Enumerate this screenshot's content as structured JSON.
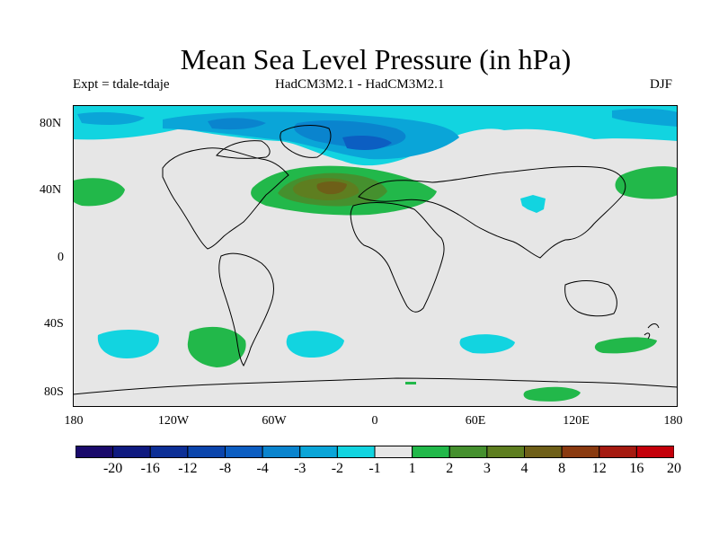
{
  "title": "Mean Sea Level Pressure (in hPa)",
  "experiment": "Expt = tdale-tdaje",
  "models": "HadCM3M2.1 - HadCM3M2.1",
  "season": "DJF",
  "lat_labels": [
    "80N",
    "40N",
    "0",
    "40S",
    "80S"
  ],
  "lon_labels": [
    "180",
    "120W",
    "60W",
    "0",
    "60E",
    "120E",
    "180"
  ],
  "colorbar": {
    "labels": [
      "-20",
      "-16",
      "-12",
      "-8",
      "-4",
      "-3",
      "-2",
      "-1",
      "1",
      "2",
      "3",
      "4",
      "8",
      "12",
      "16",
      "20"
    ],
    "colors": [
      "#1a0a6b",
      "#0f1a80",
      "#0d2f96",
      "#0b45ac",
      "#0c5ec2",
      "#0a84ce",
      "#0aa5d8",
      "#12d4e0",
      "#e6e6e6",
      "#22b84a",
      "#45902e",
      "#5e7e20",
      "#6e5f18",
      "#8a3a10",
      "#a51a10",
      "#c4000a"
    ]
  },
  "map_colors": {
    "land_ocean_background": "#e6e6e6",
    "coastline": "#000000"
  }
}
